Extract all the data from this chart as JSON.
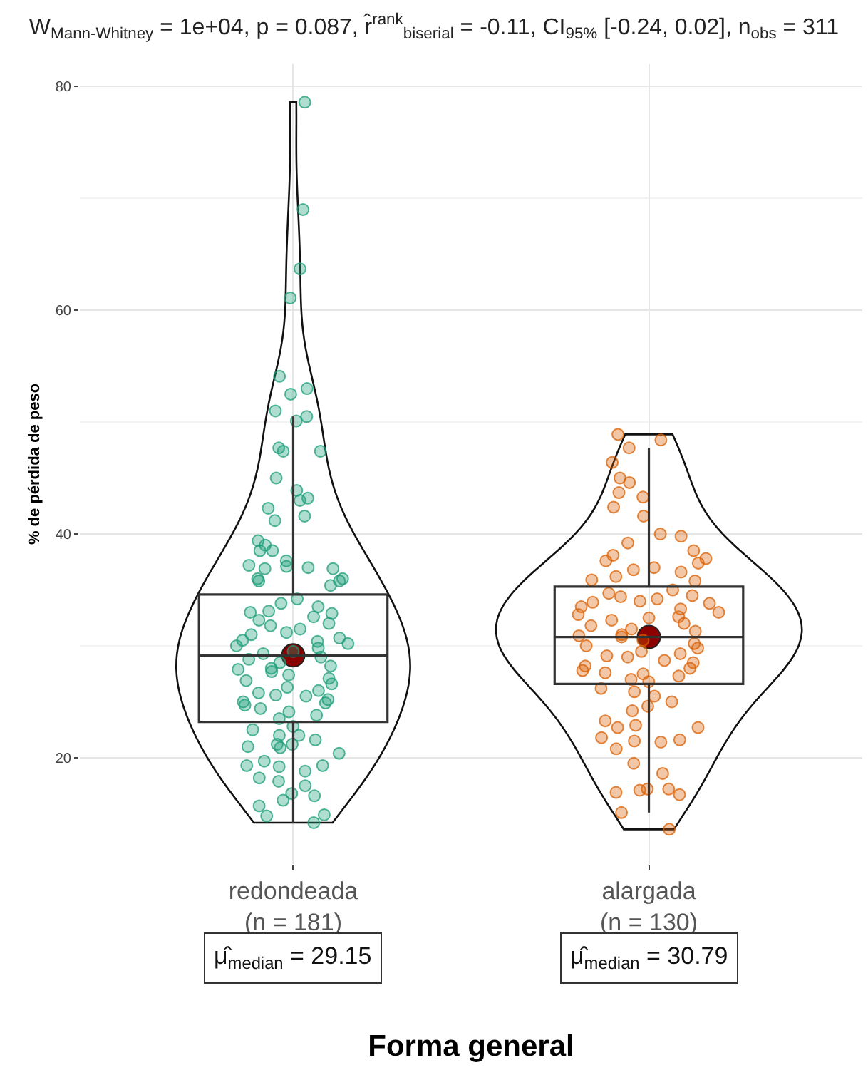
{
  "chart_data": {
    "type": "box",
    "title": "W$_{Mann-Whitney}$ = 1e+04, p = 0.087, r̂$^{rank}$$_{biserial}$ = -0.11, CI$_{95%}$ [-0.24, 0.02], n$_{obs}$ = 311",
    "xlabel": "Forma general",
    "ylabel": "% de pérdida de peso",
    "categories": [
      "redondeada\n(n = 181)",
      "alargada\n(n = 130)"
    ],
    "ylim": [
      10.5,
      82
    ],
    "yticks": [
      20,
      40,
      60,
      80
    ],
    "grid": true,
    "marker": "circle",
    "boxes": [
      {
        "low": 14.2,
        "q1": 23.2,
        "median": 29.15,
        "q3": 34.6,
        "high": 50.5
      },
      {
        "low": 15.1,
        "q1": 26.6,
        "median": 30.79,
        "q3": 35.3,
        "high": 47.7
      }
    ],
    "series": [
      {
        "type": "scatter",
        "color": "#1b9e77",
        "x": [
          "redondeada\n(n = 181)",
          "redondeada\n(n = 181)",
          "redondeada\n(n = 181)",
          "redondeada\n(n = 181)",
          "redondeada\n(n = 181)",
          "redondeada\n(n = 181)",
          "redondeada\n(n = 181)",
          "redondeada\n(n = 181)",
          "redondeada\n(n = 181)",
          "redondeada\n(n = 181)",
          "redondeada\n(n = 181)",
          "redondeada\n(n = 181)",
          "redondeada\n(n = 181)",
          "redondeada\n(n = 181)",
          "redondeada\n(n = 181)",
          "redondeada\n(n = 181)",
          "redondeada\n(n = 181)",
          "redondeada\n(n = 181)",
          "redondeada\n(n = 181)",
          "redondeada\n(n = 181)",
          "redondeada\n(n = 181)",
          "redondeada\n(n = 181)",
          "redondeada\n(n = 181)",
          "redondeada\n(n = 181)",
          "redondeada\n(n = 181)",
          "redondeada\n(n = 181)",
          "redondeada\n(n = 181)",
          "redondeada\n(n = 181)",
          "redondeada\n(n = 181)",
          "redondeada\n(n = 181)",
          "redondeada\n(n = 181)",
          "redondeada\n(n = 181)",
          "redondeada\n(n = 181)",
          "redondeada\n(n = 181)",
          "redondeada\n(n = 181)",
          "redondeada\n(n = 181)",
          "redondeada\n(n = 181)",
          "redondeada\n(n = 181)",
          "redondeada\n(n = 181)",
          "redondeada\n(n = 181)",
          "redondeada\n(n = 181)",
          "redondeada\n(n = 181)",
          "redondeada\n(n = 181)",
          "redondeada\n(n = 181)",
          "redondeada\n(n = 181)",
          "redondeada\n(n = 181)",
          "redondeada\n(n = 181)",
          "redondeada\n(n = 181)",
          "redondeada\n(n = 181)",
          "redondeada\n(n = 181)",
          "redondeada\n(n = 181)",
          "redondeada\n(n = 181)",
          "redondeada\n(n = 181)",
          "redondeada\n(n = 181)",
          "redondeada\n(n = 181)",
          "redondeada\n(n = 181)",
          "redondeada\n(n = 181)",
          "redondeada\n(n = 181)",
          "redondeada\n(n = 181)",
          "redondeada\n(n = 181)",
          "redondeada\n(n = 181)",
          "redondeada\n(n = 181)",
          "redondeada\n(n = 181)",
          "redondeada\n(n = 181)",
          "redondeada\n(n = 181)",
          "redondeada\n(n = 181)",
          "redondeada\n(n = 181)",
          "redondeada\n(n = 181)",
          "redondeada\n(n = 181)",
          "redondeada\n(n = 181)",
          "redondeada\n(n = 181)",
          "redondeada\n(n = 181)",
          "redondeada\n(n = 181)",
          "redondeada\n(n = 181)",
          "redondeada\n(n = 181)",
          "redondeada\n(n = 181)",
          "redondeada\n(n = 181)",
          "redondeada\n(n = 181)",
          "redondeada\n(n = 181)",
          "redondeada\n(n = 181)",
          "redondeada\n(n = 181)",
          "redondeada\n(n = 181)",
          "redondeada\n(n = 181)",
          "redondeada\n(n = 181)",
          "redondeada\n(n = 181)",
          "redondeada\n(n = 181)",
          "redondeada\n(n = 181)",
          "redondeada\n(n = 181)",
          "redondeada\n(n = 181)",
          "redondeada\n(n = 181)",
          "redondeada\n(n = 181)",
          "redondeada\n(n = 181)",
          "redondeada\n(n = 181)",
          "redondeada\n(n = 181)",
          "redondeada\n(n = 181)",
          "redondeada\n(n = 181)",
          "redondeada\n(n = 181)",
          "redondeada\n(n = 181)",
          "redondeada\n(n = 181)",
          "redondeada\n(n = 181)",
          "redondeada\n(n = 181)",
          "redondeada\n(n = 181)",
          "redondeada\n(n = 181)",
          "redondeada\n(n = 181)",
          "redondeada\n(n = 181)"
        ],
        "values": [
          78.6,
          69.0,
          63.7,
          61.1,
          54.1,
          53.0,
          52.5,
          51.0,
          50.5,
          50.1,
          47.4,
          47.4,
          47.7,
          45.0,
          43.9,
          43.0,
          43.2,
          42.3,
          41.6,
          41.2,
          39.4,
          39.0,
          38.5,
          38.5,
          37.1,
          37.6,
          36.9,
          37.2,
          36.9,
          37.0,
          35.8,
          35.8,
          36.0,
          36.0,
          35.4,
          34.2,
          33.8,
          33.5,
          33.1,
          32.9,
          32.6,
          32.3,
          32.0,
          31.8,
          31.5,
          31.2,
          31.0,
          30.7,
          30.5,
          30.2,
          30.0,
          29.8,
          29.5,
          29.3,
          29.0,
          28.8,
          28.5,
          28.2,
          28.0,
          27.7,
          27.4,
          27.1,
          26.9,
          26.6,
          26.3,
          26.0,
          25.8,
          25.5,
          25.2,
          25.0,
          24.7,
          24.4,
          24.1,
          23.8,
          23.5,
          33.0,
          30.4,
          27.9,
          25.6,
          24.9,
          22.0,
          21.0,
          22.0,
          21.6,
          21.2,
          21.2,
          20.4,
          19.3,
          19.2,
          19.7,
          19.3,
          18.2,
          18.8,
          17.5,
          16.6,
          16.2,
          16.8,
          15.7,
          14.8,
          14.9,
          14.2,
          22.8,
          22.5,
          20.9,
          17.9
        ]
      },
      {
        "type": "scatter",
        "color": "#d95f02",
        "x": [
          "alargada\n(n = 130)",
          "alargada\n(n = 130)",
          "alargada\n(n = 130)",
          "alargada\n(n = 130)",
          "alargada\n(n = 130)",
          "alargada\n(n = 130)",
          "alargada\n(n = 130)",
          "alargada\n(n = 130)",
          "alargada\n(n = 130)",
          "alargada\n(n = 130)",
          "alargada\n(n = 130)",
          "alargada\n(n = 130)",
          "alargada\n(n = 130)",
          "alargada\n(n = 130)",
          "alargada\n(n = 130)",
          "alargada\n(n = 130)",
          "alargada\n(n = 130)",
          "alargada\n(n = 130)",
          "alargada\n(n = 130)",
          "alargada\n(n = 130)",
          "alargada\n(n = 130)",
          "alargada\n(n = 130)",
          "alargada\n(n = 130)",
          "alargada\n(n = 130)",
          "alargada\n(n = 130)",
          "alargada\n(n = 130)",
          "alargada\n(n = 130)",
          "alargada\n(n = 130)",
          "alargada\n(n = 130)",
          "alargada\n(n = 130)",
          "alargada\n(n = 130)",
          "alargada\n(n = 130)",
          "alargada\n(n = 130)",
          "alargada\n(n = 130)",
          "alargada\n(n = 130)",
          "alargada\n(n = 130)",
          "alargada\n(n = 130)",
          "alargada\n(n = 130)",
          "alargada\n(n = 130)",
          "alargada\n(n = 130)",
          "alargada\n(n = 130)",
          "alargada\n(n = 130)",
          "alargada\n(n = 130)",
          "alargada\n(n = 130)",
          "alargada\n(n = 130)",
          "alargada\n(n = 130)",
          "alargada\n(n = 130)",
          "alargada\n(n = 130)",
          "alargada\n(n = 130)",
          "alargada\n(n = 130)",
          "alargada\n(n = 130)",
          "alargada\n(n = 130)",
          "alargada\n(n = 130)",
          "alargada\n(n = 130)",
          "alargada\n(n = 130)",
          "alargada\n(n = 130)",
          "alargada\n(n = 130)",
          "alargada\n(n = 130)",
          "alargada\n(n = 130)",
          "alargada\n(n = 130)",
          "alargada\n(n = 130)",
          "alargada\n(n = 130)",
          "alargada\n(n = 130)",
          "alargada\n(n = 130)",
          "alargada\n(n = 130)",
          "alargada\n(n = 130)",
          "alargada\n(n = 130)",
          "alargada\n(n = 130)",
          "alargada\n(n = 130)",
          "alargada\n(n = 130)",
          "alargada\n(n = 130)",
          "alargada\n(n = 130)",
          "alargada\n(n = 130)",
          "alargada\n(n = 130)",
          "alargada\n(n = 130)",
          "alargada\n(n = 130)",
          "alargada\n(n = 130)",
          "alargada\n(n = 130)",
          "alargada\n(n = 130)",
          "alargada\n(n = 130)",
          "alargada\n(n = 130)",
          "alargada\n(n = 130)",
          "alargada\n(n = 130)",
          "alargada\n(n = 130)",
          "alargada\n(n = 130)",
          "alargada\n(n = 130)",
          "alargada\n(n = 130)",
          "alargada\n(n = 130)"
        ],
        "values": [
          47.7,
          48.4,
          48.9,
          46.4,
          44.6,
          45.0,
          43.3,
          43.7,
          42.4,
          41.6,
          40.0,
          39.8,
          37.6,
          37.8,
          36.8,
          36.6,
          37.0,
          37.4,
          35.9,
          35.8,
          38.5,
          39.2,
          36.2,
          38.1,
          35.0,
          34.7,
          34.5,
          34.2,
          34.0,
          33.8,
          33.5,
          33.3,
          33.0,
          32.8,
          32.5,
          32.3,
          32.0,
          31.8,
          31.5,
          31.3,
          31.0,
          30.8,
          30.5,
          30.2,
          30.0,
          29.8,
          29.5,
          29.3,
          29.0,
          28.7,
          28.5,
          28.2,
          28.0,
          27.8,
          27.5,
          27.3,
          27.0,
          26.8,
          34.4,
          32.6,
          30.9,
          29.1,
          27.6,
          33.9,
          26.2,
          25.9,
          25.5,
          25.0,
          24.6,
          24.2,
          23.3,
          22.9,
          22.7,
          22.7,
          21.8,
          21.6,
          21.5,
          21.4,
          20.8,
          19.5,
          18.6,
          17.2,
          17.2,
          17.1,
          16.7,
          16.9,
          15.1,
          13.6
        ]
      },
      {
        "type": "scatter",
        "color": "#8b0000",
        "x": [
          "redondeada\n(n = 181)",
          "alargada\n(n = 130)"
        ],
        "values": [
          29.15,
          30.79
        ]
      }
    ],
    "annotations": [
      "μ̂$_{median}$ = 29.15",
      "μ̂$_{median}$ = 30.79"
    ]
  }
}
